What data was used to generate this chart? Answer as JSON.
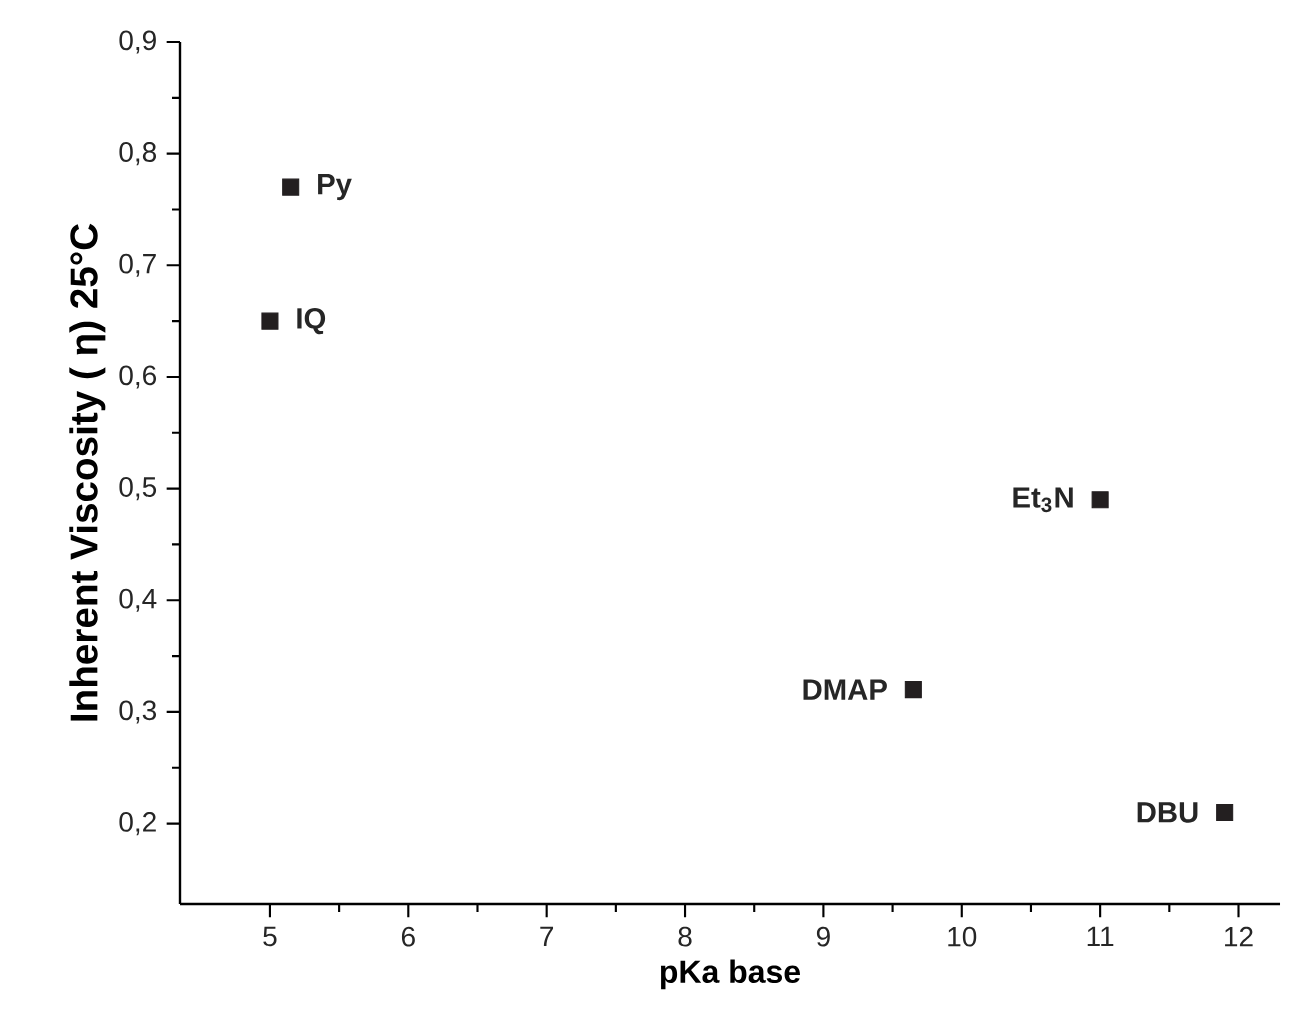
{
  "chart_data": {
    "type": "scatter",
    "xlabel": "pKa base",
    "ylabel": "Inherent Viscosity ( η) 25°C",
    "x": [
      5.15,
      5.0,
      11.0,
      9.65,
      11.9
    ],
    "values": [
      0.77,
      0.65,
      0.49,
      0.32,
      0.21
    ],
    "color": "#231f20",
    "marker": "square",
    "xlim": [
      4.35,
      12.3
    ],
    "ylim": [
      0.128,
      0.9
    ],
    "xticks": [
      5,
      6,
      7,
      8,
      9,
      10,
      11,
      12
    ],
    "yticks": [
      {
        "value": 0.2,
        "label": "0,2"
      },
      {
        "value": 0.3,
        "label": "0,3"
      },
      {
        "value": 0.4,
        "label": "0,4"
      },
      {
        "value": 0.5,
        "label": "0,5"
      },
      {
        "value": 0.6,
        "label": "0,6"
      },
      {
        "value": 0.7,
        "label": "0,7"
      },
      {
        "value": 0.8,
        "label": "0,8"
      },
      {
        "value": 0.9,
        "label": "0,9"
      }
    ],
    "annotations": [
      {
        "text": "Py",
        "x": 5.15,
        "y": 0.77
      },
      {
        "text": "IQ",
        "x": 5.0,
        "y": 0.65
      },
      {
        "text": "Et$_{3}$N",
        "x": 11.0,
        "y": 0.49
      },
      {
        "text": "DMAP",
        "x": 9.65,
        "y": 0.32
      },
      {
        "text": "DBU",
        "x": 11.9,
        "y": 0.21
      }
    ],
    "grid": false
  }
}
